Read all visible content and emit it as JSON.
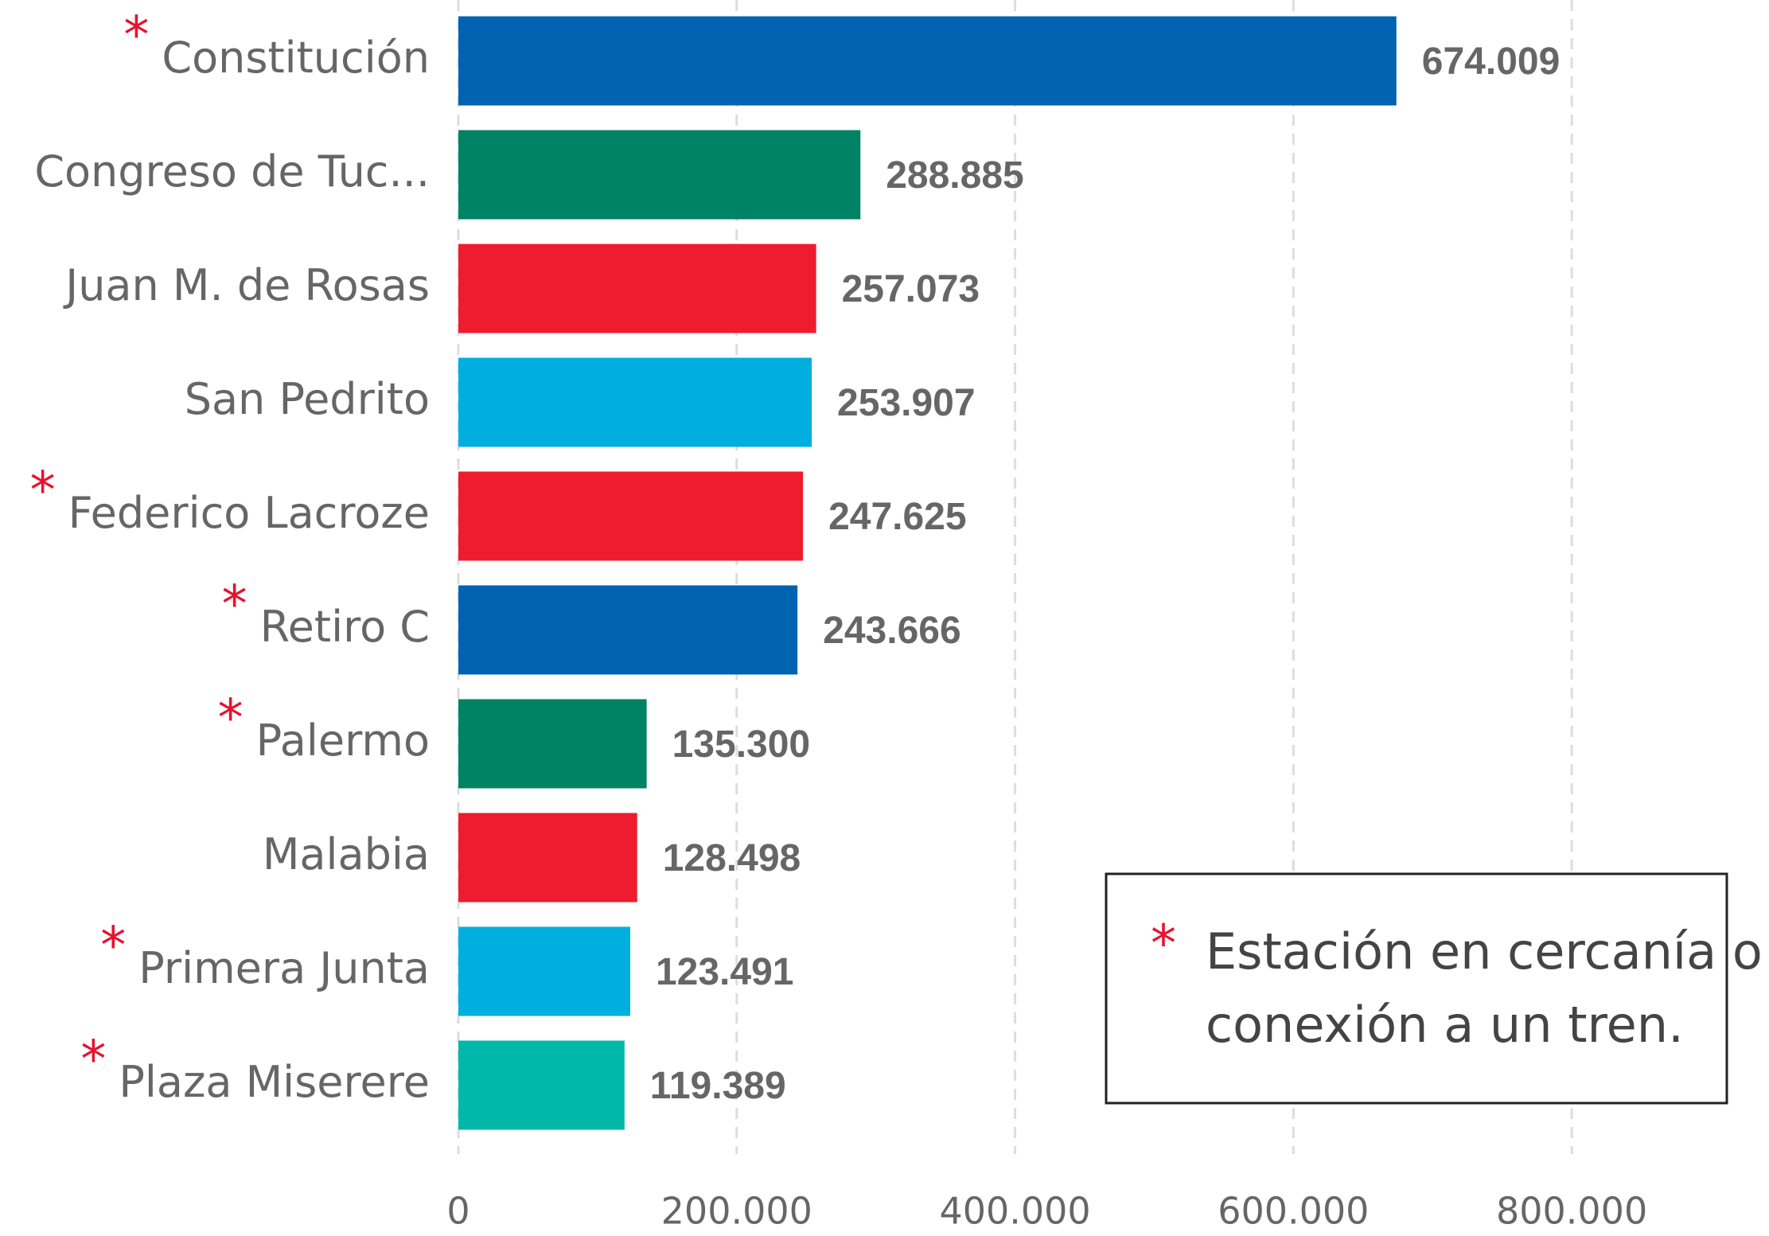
{
  "chart_data": {
    "type": "bar",
    "orientation": "horizontal",
    "categories": [
      "Constitución",
      "Congreso de Tuc...",
      "Juan M. de Rosas",
      "San Pedrito",
      "Federico Lacroze",
      "Retiro C",
      "Palermo",
      "Malabia",
      "Primera Junta",
      "Plaza Miserere"
    ],
    "values": [
      674009,
      288885,
      257073,
      253907,
      247625,
      243666,
      135300,
      128498,
      123491,
      119389
    ],
    "value_labels": [
      "674.009",
      "288.885",
      "257.073",
      "253.907",
      "247.625",
      "243.666",
      "135.300",
      "128.498",
      "123.491",
      "119.389"
    ],
    "colors": [
      "#0063b1",
      "#008264",
      "#ee1c2e",
      "#00aedf",
      "#ee1c2e",
      "#0063b1",
      "#008264",
      "#ee1c2e",
      "#00aedf",
      "#00b8aa"
    ],
    "marked": [
      true,
      false,
      false,
      false,
      true,
      true,
      true,
      false,
      true,
      true
    ],
    "marker": "*",
    "xlim": [
      0,
      900000
    ],
    "xticks": [
      0,
      {
        "value": 200000,
        "label": "200.000"
      },
      {
        "value": 400000,
        "label": "400.000"
      },
      {
        "value": 600000,
        "label": "600.000"
      },
      {
        "value": 800000,
        "label": "800.000"
      }
    ],
    "grid": true,
    "legend": {
      "marker": "*",
      "lines": [
        "Estación en cercanía o con",
        "conexión a un tren."
      ]
    }
  }
}
